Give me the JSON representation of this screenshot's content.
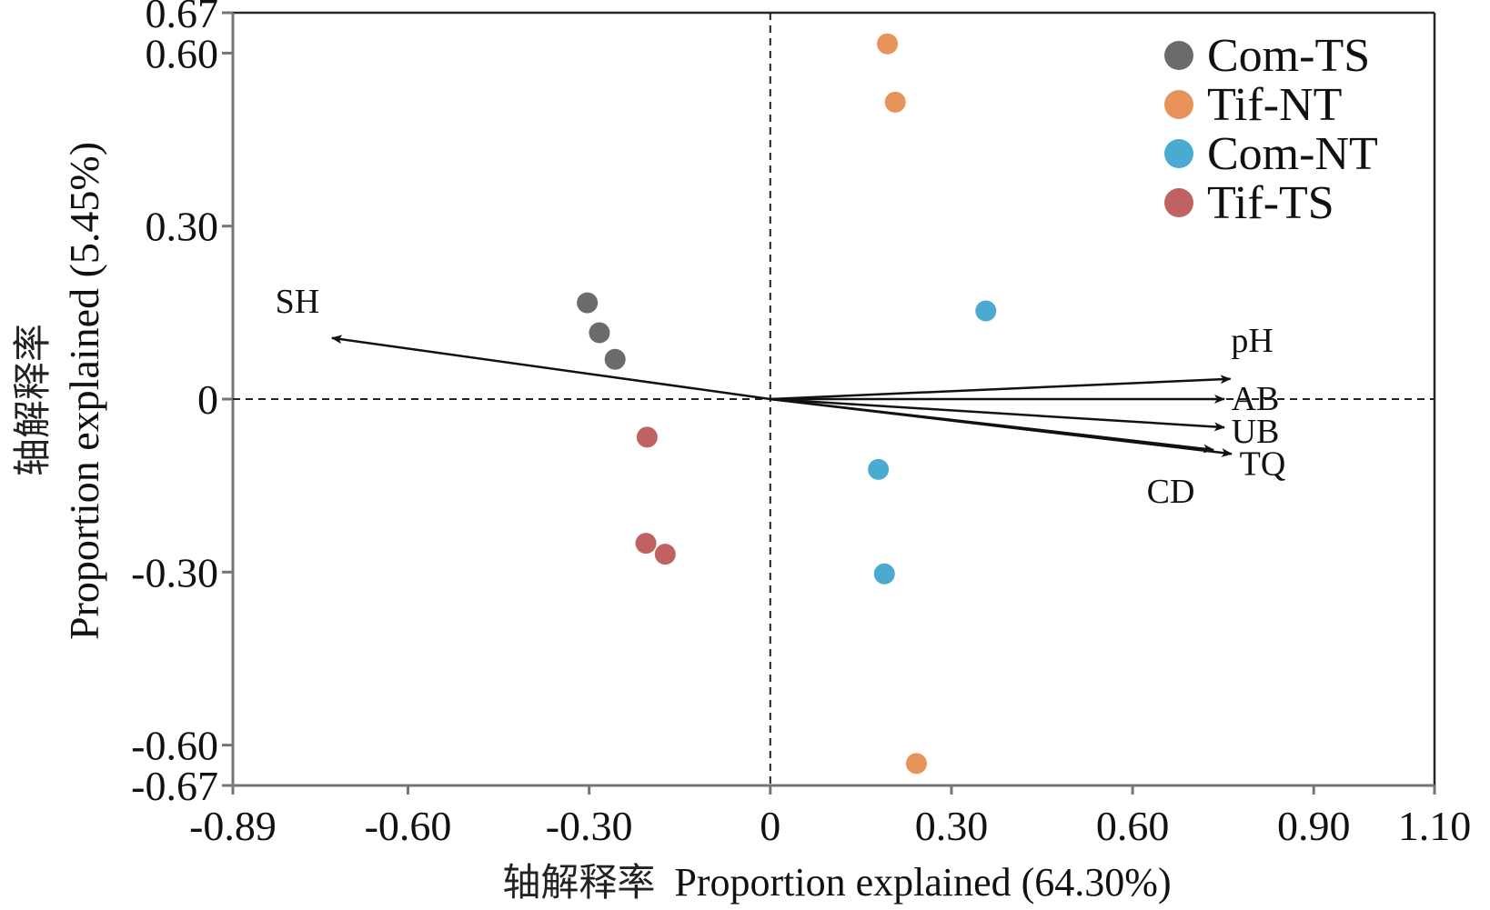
{
  "chart_data": {
    "type": "scatter",
    "title": "",
    "xlabel_cn": "轴解释率",
    "xlabel": "Proportion explained (64.30%)",
    "ylabel_cn": "轴解释率",
    "ylabel": "Proportion explained (5.45%)",
    "xlim": [
      -0.89,
      1.1
    ],
    "ylim": [
      -0.67,
      0.67
    ],
    "xticks": [
      {
        "value": -0.89,
        "label": "-0.89"
      },
      {
        "value": -0.6,
        "label": "-0.60"
      },
      {
        "value": -0.3,
        "label": "-0.30"
      },
      {
        "value": 0,
        "label": "0"
      },
      {
        "value": 0.3,
        "label": "0.30"
      },
      {
        "value": 0.6,
        "label": "0.60"
      },
      {
        "value": 0.9,
        "label": "0.90"
      },
      {
        "value": 1.1,
        "label": "1.10"
      }
    ],
    "yticks": [
      {
        "value": 0.67,
        "label": "0.67"
      },
      {
        "value": 0.6,
        "label": "0.60"
      },
      {
        "value": 0.3,
        "label": "0.30"
      },
      {
        "value": 0,
        "label": "0"
      },
      {
        "value": -0.3,
        "label": "-0.30"
      },
      {
        "value": -0.6,
        "label": "-0.60"
      },
      {
        "value": -0.67,
        "label": "-0.67"
      }
    ],
    "grid": false,
    "reference_lines": {
      "x": 0,
      "y": 0,
      "style": "dashed"
    },
    "legend_position": "top-right",
    "series": [
      {
        "name": "Com-TS",
        "color": "#6b6b6b",
        "points": [
          [
            -0.303,
            0.167
          ],
          [
            -0.283,
            0.115
          ],
          [
            -0.257,
            0.069
          ]
        ]
      },
      {
        "name": "Tif-NT",
        "color": "#e8935a",
        "points": [
          [
            0.194,
            0.616
          ],
          [
            0.207,
            0.515
          ],
          [
            0.242,
            -0.632
          ]
        ]
      },
      {
        "name": "Com-NT",
        "color": "#4aaad0",
        "points": [
          [
            0.357,
            0.153
          ],
          [
            0.179,
            -0.122
          ],
          [
            0.189,
            -0.303
          ]
        ]
      },
      {
        "name": "Tif-TS",
        "color": "#c06262",
        "points": [
          [
            -0.204,
            -0.066
          ],
          [
            -0.206,
            -0.25
          ],
          [
            -0.174,
            -0.269
          ]
        ]
      }
    ],
    "vectors": [
      {
        "name": "SH",
        "x": -0.726,
        "y": 0.106
      },
      {
        "name": "pH",
        "x": 0.762,
        "y": 0.035
      },
      {
        "name": "AB",
        "x": 0.752,
        "y": 0.0
      },
      {
        "name": "UB",
        "x": 0.752,
        "y": -0.049
      },
      {
        "name": "TQ",
        "x": 0.764,
        "y": -0.095
      },
      {
        "name": "CD",
        "x": 0.734,
        "y": -0.088
      }
    ]
  }
}
